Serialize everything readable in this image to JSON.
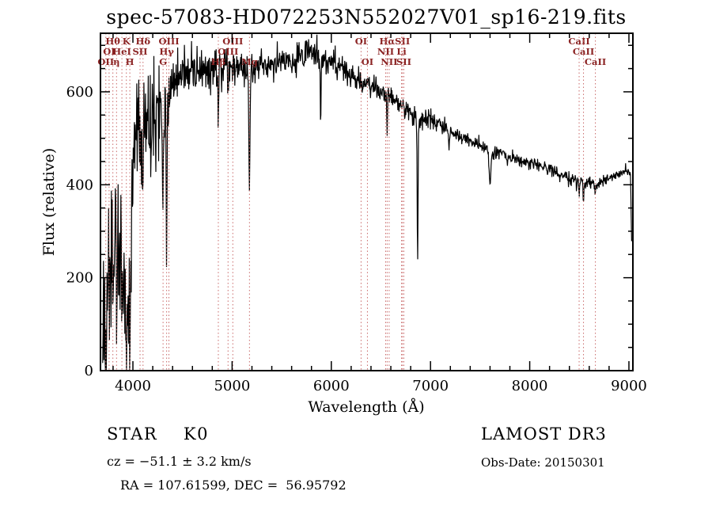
{
  "title": "spec-57083-HD072253N552027V01_sp16-219.fits",
  "axes": {
    "xlabel": "Wavelength (Å)",
    "ylabel": "Flux (relative)"
  },
  "footer": {
    "class_label": "STAR    K0",
    "survey": "LAMOST DR3",
    "cz": "cz = −51.1 ± 3.2 km/s",
    "obs_date": "Obs-Date: 20150301",
    "coords": "RA = 107.61599, DEC =  56.95792"
  },
  "colors": {
    "spectrum": "#000000",
    "axis": "#000000",
    "line_marker": "#c96a6a",
    "marker_label": "#8b2323"
  },
  "chart_data": {
    "type": "line",
    "title": "spec-57083-HD072253N552027V01_sp16-219.fits",
    "xlabel": "Wavelength (Å)",
    "ylabel": "Flux (relative)",
    "xlim": [
      3673,
      9040
    ],
    "ylim": [
      0,
      726
    ],
    "xticks": [
      4000,
      5000,
      6000,
      7000,
      8000,
      9000
    ],
    "yticks": [
      0,
      200,
      400,
      600
    ],
    "x_minor_step": 200,
    "y_minor_step": 50,
    "grid": false,
    "legend": false,
    "wl_start": 3695,
    "wl_end": 9030,
    "sample_step": 4,
    "continuum_points": [
      [
        3695,
        25
      ],
      [
        3712,
        130
      ],
      [
        3728,
        95
      ],
      [
        3744,
        165
      ],
      [
        3760,
        195
      ],
      [
        3776,
        225
      ],
      [
        3792,
        235
      ],
      [
        3808,
        215
      ],
      [
        3824,
        235
      ],
      [
        3840,
        215
      ],
      [
        3856,
        240
      ],
      [
        3872,
        265
      ],
      [
        3888,
        245
      ],
      [
        3904,
        195
      ],
      [
        3920,
        160
      ],
      [
        3936,
        135
      ],
      [
        3952,
        145
      ],
      [
        3968,
        165
      ],
      [
        3984,
        260
      ],
      [
        4000,
        420
      ],
      [
        4020,
        480
      ],
      [
        4045,
        515
      ],
      [
        4070,
        520
      ],
      [
        4095,
        490
      ],
      [
        4120,
        545
      ],
      [
        4150,
        555
      ],
      [
        4180,
        545
      ],
      [
        4210,
        585
      ],
      [
        4240,
        575
      ],
      [
        4270,
        560
      ],
      [
        4300,
        545
      ],
      [
        4330,
        550
      ],
      [
        4360,
        580
      ],
      [
        4400,
        615
      ],
      [
        4450,
        630
      ],
      [
        4500,
        645
      ],
      [
        4550,
        635
      ],
      [
        4600,
        652
      ],
      [
        4650,
        645
      ],
      [
        4700,
        652
      ],
      [
        4750,
        645
      ],
      [
        4800,
        650
      ],
      [
        4861,
        640
      ],
      [
        4920,
        650
      ],
      [
        4980,
        648
      ],
      [
        5040,
        650
      ],
      [
        5100,
        648
      ],
      [
        5175,
        648
      ],
      [
        5250,
        652
      ],
      [
        5320,
        655
      ],
      [
        5400,
        658
      ],
      [
        5480,
        662
      ],
      [
        5560,
        668
      ],
      [
        5640,
        674
      ],
      [
        5720,
        682
      ],
      [
        5790,
        690
      ],
      [
        5850,
        682
      ],
      [
        5900,
        668
      ],
      [
        5960,
        668
      ],
      [
        6020,
        660
      ],
      [
        6080,
        652
      ],
      [
        6140,
        645
      ],
      [
        6200,
        638
      ],
      [
        6260,
        628
      ],
      [
        6320,
        618
      ],
      [
        6380,
        614
      ],
      [
        6440,
        608
      ],
      [
        6500,
        600
      ],
      [
        6560,
        592
      ],
      [
        6620,
        585
      ],
      [
        6680,
        576
      ],
      [
        6740,
        565
      ],
      [
        6800,
        556
      ],
      [
        6860,
        544
      ],
      [
        6920,
        538
      ],
      [
        6980,
        543
      ],
      [
        7040,
        538
      ],
      [
        7100,
        530
      ],
      [
        7160,
        523
      ],
      [
        7220,
        514
      ],
      [
        7280,
        506
      ],
      [
        7340,
        500
      ],
      [
        7400,
        493
      ],
      [
        7460,
        488
      ],
      [
        7520,
        483
      ],
      [
        7580,
        475
      ],
      [
        7640,
        468
      ],
      [
        7700,
        468
      ],
      [
        7760,
        462
      ],
      [
        7820,
        458
      ],
      [
        7880,
        453
      ],
      [
        7940,
        450
      ],
      [
        8000,
        446
      ],
      [
        8060,
        442
      ],
      [
        8120,
        438
      ],
      [
        8180,
        434
      ],
      [
        8240,
        429
      ],
      [
        8300,
        424
      ],
      [
        8360,
        419
      ],
      [
        8420,
        413
      ],
      [
        8480,
        407
      ],
      [
        8540,
        402
      ],
      [
        8600,
        405
      ],
      [
        8660,
        403
      ],
      [
        8720,
        408
      ],
      [
        8780,
        414
      ],
      [
        8840,
        419
      ],
      [
        8900,
        424
      ],
      [
        8960,
        428
      ],
      [
        9005,
        431
      ],
      [
        9016,
        420
      ],
      [
        9030,
        238
      ]
    ],
    "absorption_features": [
      {
        "wl": 3727,
        "depth": 70,
        "width": 10
      },
      {
        "wl": 3798,
        "depth": 95,
        "width": 10
      },
      {
        "wl": 3835,
        "depth": 105,
        "width": 10
      },
      {
        "wl": 3889,
        "depth": 115,
        "width": 10
      },
      {
        "wl": 3934,
        "depth": 135,
        "width": 12
      },
      {
        "wl": 3969,
        "depth": 120,
        "width": 12
      },
      {
        "wl": 4102,
        "depth": 155,
        "width": 12
      },
      {
        "wl": 4227,
        "depth": 55,
        "width": 10
      },
      {
        "wl": 4304,
        "depth": 140,
        "width": 18
      },
      {
        "wl": 4340,
        "depth": 330,
        "width": 8
      },
      {
        "wl": 4861,
        "depth": 95,
        "width": 10
      },
      {
        "wl": 5175,
        "depth": 265,
        "width": 14
      },
      {
        "wl": 5893,
        "depth": 130,
        "width": 9
      },
      {
        "wl": 6563,
        "depth": 75,
        "width": 9
      },
      {
        "wl": 6870,
        "depth": 300,
        "width": 10
      },
      {
        "wl": 7186,
        "depth": 35,
        "width": 16
      },
      {
        "wl": 7600,
        "depth": 70,
        "width": 22
      },
      {
        "wl": 8498,
        "depth": 28,
        "width": 9
      },
      {
        "wl": 8542,
        "depth": 34,
        "width": 9
      },
      {
        "wl": 8662,
        "depth": 28,
        "width": 9
      }
    ],
    "noise_sigma_points": [
      [
        3695,
        80
      ],
      [
        3900,
        85
      ],
      [
        3990,
        70
      ],
      [
        4100,
        58
      ],
      [
        4250,
        52
      ],
      [
        4400,
        34
      ],
      [
        4600,
        26
      ],
      [
        4900,
        20
      ],
      [
        5300,
        16
      ],
      [
        5800,
        15
      ],
      [
        6200,
        13
      ],
      [
        6600,
        11
      ],
      [
        7000,
        9
      ],
      [
        7500,
        8
      ],
      [
        8000,
        7
      ],
      [
        8600,
        6
      ],
      [
        9000,
        6
      ]
    ],
    "spectral_lines": [
      {
        "label": "Hθ",
        "wl": 3798,
        "row": 1
      },
      {
        "label": "K",
        "wl": 3934,
        "row": 1
      },
      {
        "label": "Hδ",
        "wl": 4102,
        "row": 1
      },
      {
        "label": "OIII",
        "wl": 4363,
        "row": 1
      },
      {
        "label": "OIII",
        "wl": 5007,
        "row": 1
      },
      {
        "label": "OI",
        "wl": 6300,
        "row": 1
      },
      {
        "label": "Hα",
        "wl": 6563,
        "row": 1
      },
      {
        "label": "SII",
        "wl": 6717,
        "row": 1
      },
      {
        "label": "CaII",
        "wl": 8498,
        "row": 1
      },
      {
        "label": "OI",
        "wl": 3760,
        "row": 2
      },
      {
        "label": "HeI",
        "wl": 3889,
        "row": 2
      },
      {
        "label": "SII",
        "wl": 4072,
        "row": 2
      },
      {
        "label": "Hγ",
        "wl": 4340,
        "row": 2
      },
      {
        "label": "OIII",
        "wl": 4959,
        "row": 2
      },
      {
        "label": "NII",
        "wl": 6548,
        "row": 2
      },
      {
        "label": "Li",
        "wl": 6708,
        "row": 2
      },
      {
        "label": "CaII",
        "wl": 8542,
        "row": 2
      },
      {
        "label": "OII",
        "wl": 3727,
        "row": 3
      },
      {
        "label": "η",
        "wl": 3835,
        "row": 3
      },
      {
        "label": "H",
        "wl": 3969,
        "row": 3
      },
      {
        "label": "G",
        "wl": 4304,
        "row": 3
      },
      {
        "label": "Hβ",
        "wl": 4861,
        "row": 3
      },
      {
        "label": "Mg",
        "wl": 5175,
        "row": 3
      },
      {
        "label": "OI",
        "wl": 6364,
        "row": 3
      },
      {
        "label": "NII",
        "wl": 6583,
        "row": 3
      },
      {
        "label": "SII",
        "wl": 6731,
        "row": 3
      },
      {
        "label": "CaII",
        "wl": 8662,
        "row": 3
      }
    ]
  }
}
